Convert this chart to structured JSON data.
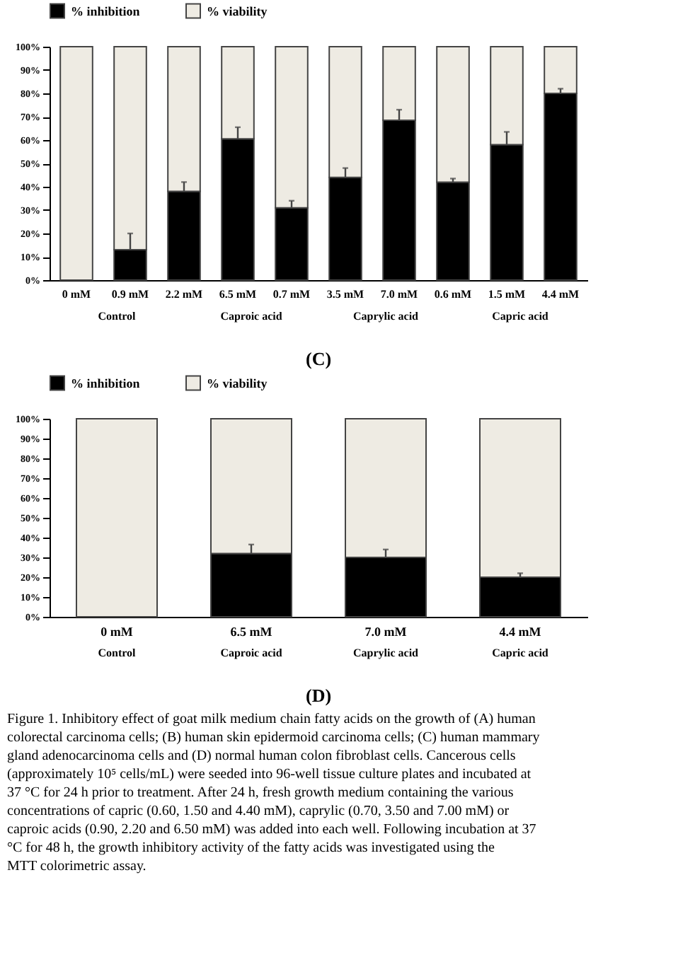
{
  "chart_data": [
    {
      "type": "bar",
      "stacked": true,
      "title": "(C)",
      "categories": [
        "0 mM",
        "0.9 mM",
        "2.2 mM",
        "6.5 mM",
        "0.7 mM",
        "3.5 mM",
        "7.0 mM",
        "0.6 mM",
        "1.5 mM",
        "4.4 mM"
      ],
      "series": [
        {
          "name": "% inhibition",
          "color": "#000000",
          "values": [
            0,
            13,
            38,
            60.5,
            31,
            44,
            68.5,
            42,
            58,
            80
          ],
          "errors": [
            null,
            [
              13,
              20
            ],
            [
              38,
              42
            ],
            [
              60.5,
              65.5
            ],
            [
              31,
              34
            ],
            [
              44,
              48
            ],
            [
              68.5,
              73
            ],
            [
              42,
              43.5
            ],
            [
              58,
              63.5
            ],
            [
              80,
              82
            ]
          ]
        },
        {
          "name": "% viability",
          "color": "#eeebe3",
          "values": [
            100,
            87,
            62,
            39.5,
            69,
            56,
            31.5,
            58,
            42,
            20
          ]
        }
      ],
      "ylim": [
        0,
        100
      ],
      "yticks": [
        {
          "value": 0,
          "label": "0%"
        },
        {
          "value": 10,
          "label": "10%"
        },
        {
          "value": 20,
          "label": "20%"
        },
        {
          "value": 30,
          "label": "30%"
        },
        {
          "value": 40,
          "label": "40%"
        },
        {
          "value": 50,
          "label": "50%"
        },
        {
          "value": 60,
          "label": "60%"
        },
        {
          "value": 70,
          "label": "70%"
        },
        {
          "value": 80,
          "label": "80%"
        },
        {
          "value": 90,
          "label": "90%"
        },
        {
          "value": 100,
          "label": "100%"
        }
      ],
      "grid": false,
      "legend": "top",
      "annotations": [
        "Control",
        "Caproic acid",
        "Caprylic acid",
        "Capric acid"
      ]
    },
    {
      "type": "bar",
      "stacked": true,
      "title": "(D)",
      "categories": [
        "0 mM",
        "6.5 mM",
        "7.0 mM",
        "4.4 mM"
      ],
      "series": [
        {
          "name": "% inhibition",
          "color": "#000000",
          "values": [
            0,
            32,
            30,
            20
          ],
          "errors": [
            null,
            [
              32,
              36.5
            ],
            [
              30,
              34
            ],
            [
              20,
              22
            ]
          ]
        },
        {
          "name": "% viability",
          "color": "#eeebe3",
          "values": [
            100,
            68,
            70,
            80
          ]
        }
      ],
      "ylim": [
        0,
        100
      ],
      "yticks": [
        {
          "value": 0,
          "label": "0%"
        },
        {
          "value": 10,
          "label": "10%"
        },
        {
          "value": 20,
          "label": "20%"
        },
        {
          "value": 30,
          "label": "30%"
        },
        {
          "value": 40,
          "label": "40%"
        },
        {
          "value": 50,
          "label": "50%"
        },
        {
          "value": 60,
          "label": "60%"
        },
        {
          "value": 70,
          "label": "70%"
        },
        {
          "value": 80,
          "label": "80%"
        },
        {
          "value": 90,
          "label": "90%"
        },
        {
          "value": 100,
          "label": "100%"
        }
      ],
      "grid": false,
      "legend": "top",
      "annotations": [
        "Control",
        "Caproic acid",
        "Caprylic acid",
        "Capric acid"
      ]
    },
    {
      "type": "other",
      "annotations": [
        "Figure 1. Inhibitory effect of goat milk medium chain fatty acids on the growth of (A) human colorectal carcinoma cells; (B) human skin epidermoid carcinoma cells; (C) human mammary gland adenocarcinoma cells and (D) normal human colon fibroblast cells. Cancerous cells (approximately 10⁵ cells/mL) were seeded into 96-well tissue culture plates and incubated at 37 °C for 24 h prior to treatment. After 24 h, fresh growth medium containing the various concentrations of capric (0.60, 1.50 and 4.40 mM), caprylic (0.70, 3.50 and 7.00 mM) or caproic acids (0.90, 2.20 and 6.50 mM) was added into each well. Following incubation at 37 °C for 48 h, the growth inhibitory activity of the fatty acids was investigated using the MTT colorimetric assay."
      ]
    }
  ]
}
